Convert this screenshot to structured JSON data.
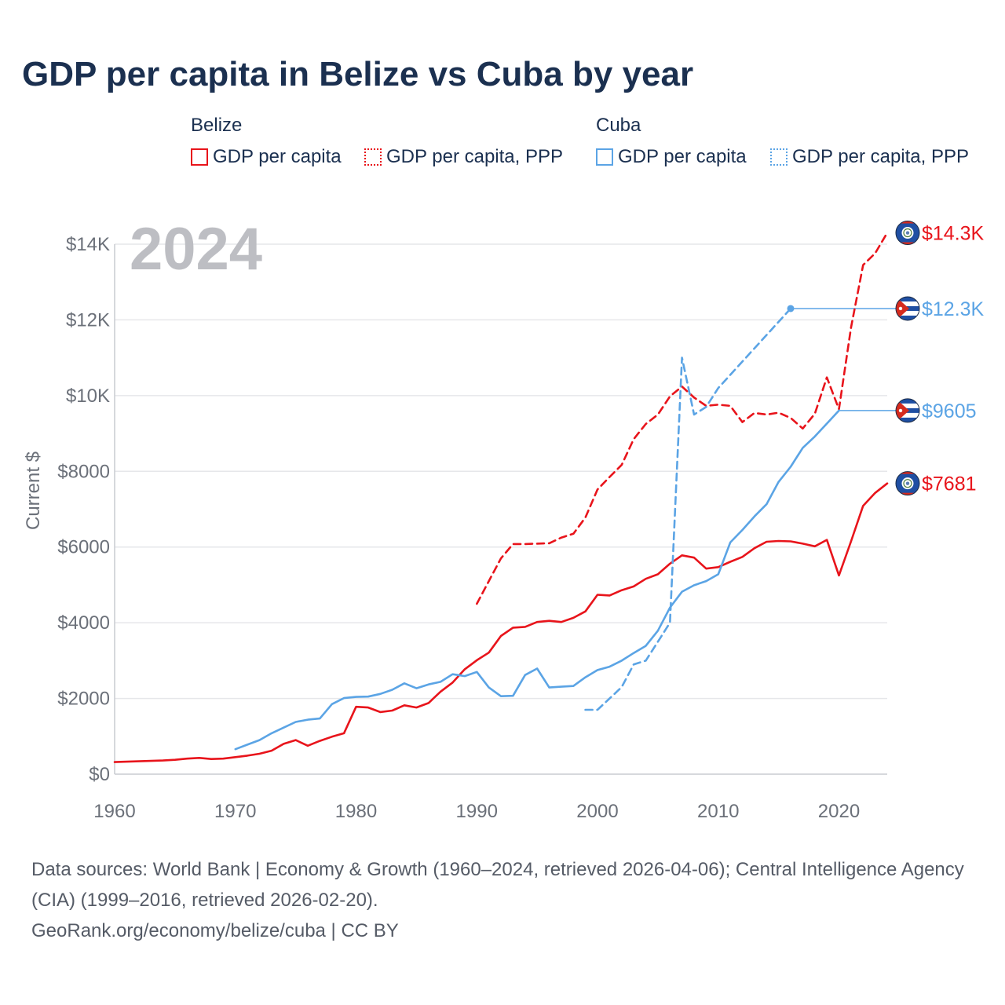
{
  "title": "GDP per capita in Belize vs Cuba by year",
  "legend": {
    "groups": [
      {
        "name": "Belize",
        "items": [
          {
            "label": "GDP per capita",
            "color": "#e8141b",
            "style": "solid"
          },
          {
            "label": "GDP per capita, PPP",
            "color": "#e8141b",
            "style": "dotted"
          }
        ]
      },
      {
        "name": "Cuba",
        "items": [
          {
            "label": "GDP per capita",
            "color": "#5ba4e5",
            "style": "solid"
          },
          {
            "label": "GDP per capita, PPP",
            "color": "#5ba4e5",
            "style": "dotted"
          }
        ]
      }
    ]
  },
  "chart_data": {
    "type": "line",
    "year_label": "2024",
    "ylabel": "Current $",
    "xlim": [
      1960,
      2024
    ],
    "ylim": [
      0,
      14000
    ],
    "x_ticks": [
      "1960",
      "1970",
      "1980",
      "1990",
      "2000",
      "2010",
      "2020"
    ],
    "y_ticks": [
      {
        "value": 0,
        "label": "$0"
      },
      {
        "value": 2000,
        "label": "$2000"
      },
      {
        "value": 4000,
        "label": "$4000"
      },
      {
        "value": 6000,
        "label": "$6000"
      },
      {
        "value": 8000,
        "label": "$8000"
      },
      {
        "value": 10000,
        "label": "$10K"
      },
      {
        "value": 12000,
        "label": "$12K"
      },
      {
        "value": 14000,
        "label": "$14K"
      }
    ],
    "series": [
      {
        "name": "Belize GDP per capita",
        "color": "#e8141b",
        "dash": "solid",
        "flag": "belize",
        "end_label": "$7681",
        "x": [
          1960,
          1961,
          1962,
          1963,
          1964,
          1965,
          1966,
          1967,
          1968,
          1969,
          1970,
          1971,
          1972,
          1973,
          1974,
          1975,
          1976,
          1977,
          1978,
          1979,
          1980,
          1981,
          1982,
          1983,
          1984,
          1985,
          1986,
          1987,
          1988,
          1989,
          1990,
          1991,
          1992,
          1993,
          1994,
          1995,
          1996,
          1997,
          1998,
          1999,
          2000,
          2001,
          2002,
          2003,
          2004,
          2005,
          2006,
          2007,
          2008,
          2009,
          2010,
          2011,
          2012,
          2013,
          2014,
          2015,
          2016,
          2017,
          2018,
          2019,
          2020,
          2021,
          2022,
          2023,
          2024
        ],
        "values": [
          320,
          330,
          340,
          350,
          360,
          380,
          410,
          430,
          400,
          410,
          450,
          490,
          540,
          620,
          800,
          900,
          750,
          880,
          990,
          1080,
          1780,
          1760,
          1640,
          1680,
          1820,
          1760,
          1880,
          2180,
          2420,
          2770,
          3010,
          3210,
          3650,
          3870,
          3890,
          4020,
          4050,
          4020,
          4130,
          4300,
          4740,
          4720,
          4860,
          4960,
          5160,
          5280,
          5560,
          5780,
          5720,
          5430,
          5470,
          5610,
          5740,
          5970,
          6140,
          6160,
          6150,
          6090,
          6020,
          6190,
          5250,
          6150,
          7090,
          7430,
          7681
        ]
      },
      {
        "name": "Belize GDP per capita, PPP",
        "color": "#e8141b",
        "dash": "dashed",
        "flag": "belize",
        "end_label": "$14.3K",
        "x": [
          1990,
          1991,
          1992,
          1993,
          1994,
          1995,
          1996,
          1997,
          1998,
          1999,
          2000,
          2001,
          2002,
          2003,
          2004,
          2005,
          2006,
          2007,
          2008,
          2009,
          2010,
          2011,
          2012,
          2013,
          2014,
          2015,
          2016,
          2017,
          2018,
          2019,
          2020,
          2021,
          2022,
          2023,
          2024
        ],
        "values": [
          4500,
          5100,
          5700,
          6080,
          6080,
          6090,
          6100,
          6250,
          6350,
          6780,
          7520,
          7850,
          8170,
          8850,
          9250,
          9500,
          9980,
          10240,
          9950,
          9730,
          9760,
          9730,
          9300,
          9540,
          9500,
          9550,
          9410,
          9130,
          9520,
          10480,
          9640,
          11800,
          13450,
          13760,
          14300
        ]
      },
      {
        "name": "Cuba GDP per capita",
        "color": "#5ba4e5",
        "dash": "solid",
        "flag": "cuba",
        "end_label": "$9605",
        "x": [
          1970,
          1971,
          1972,
          1973,
          1974,
          1975,
          1976,
          1977,
          1978,
          1979,
          1980,
          1981,
          1982,
          1983,
          1984,
          1985,
          1986,
          1987,
          1988,
          1989,
          1990,
          1991,
          1992,
          1993,
          1994,
          1995,
          1996,
          1997,
          1998,
          1999,
          2000,
          2001,
          2002,
          2003,
          2004,
          2005,
          2006,
          2007,
          2008,
          2009,
          2010,
          2011,
          2012,
          2013,
          2014,
          2015,
          2016,
          2017,
          2018,
          2019,
          2020
        ],
        "values": [
          660,
          780,
          900,
          1080,
          1230,
          1380,
          1440,
          1470,
          1850,
          2010,
          2040,
          2050,
          2120,
          2230,
          2400,
          2270,
          2370,
          2440,
          2640,
          2590,
          2700,
          2290,
          2060,
          2070,
          2620,
          2790,
          2290,
          2310,
          2330,
          2560,
          2750,
          2840,
          3000,
          3200,
          3390,
          3790,
          4400,
          4820,
          4990,
          5100,
          5280,
          6120,
          6450,
          6810,
          7130,
          7720,
          8120,
          8620,
          8920,
          9260,
          9605
        ]
      },
      {
        "name": "Cuba GDP per capita, PPP",
        "color": "#5ba4e5",
        "dash": "dashed",
        "flag": "cuba",
        "end_label": "$12.3K",
        "x": [
          1999,
          2000,
          2001,
          2002,
          2003,
          2004,
          2005,
          2006,
          2007,
          2008,
          2009,
          2010,
          2016
        ],
        "values": [
          1700,
          1700,
          2000,
          2300,
          2900,
          3000,
          3500,
          4000,
          11000,
          9500,
          9700,
          10200,
          12300
        ]
      }
    ],
    "end_connectors": [
      {
        "series": "Cuba GDP per capita, PPP",
        "from_year": 2016
      },
      {
        "series": "Cuba GDP per capita",
        "from_year": 2020
      }
    ]
  },
  "footer": {
    "sources": "Data sources: World Bank | Economy & Growth (1960–2024, retrieved 2026-04-06); Central Intelligence Agency (CIA) (1999–2016, retrieved 2026-02-20).",
    "credit": "GeoRank.org/economy/belize/cuba | CC BY"
  }
}
